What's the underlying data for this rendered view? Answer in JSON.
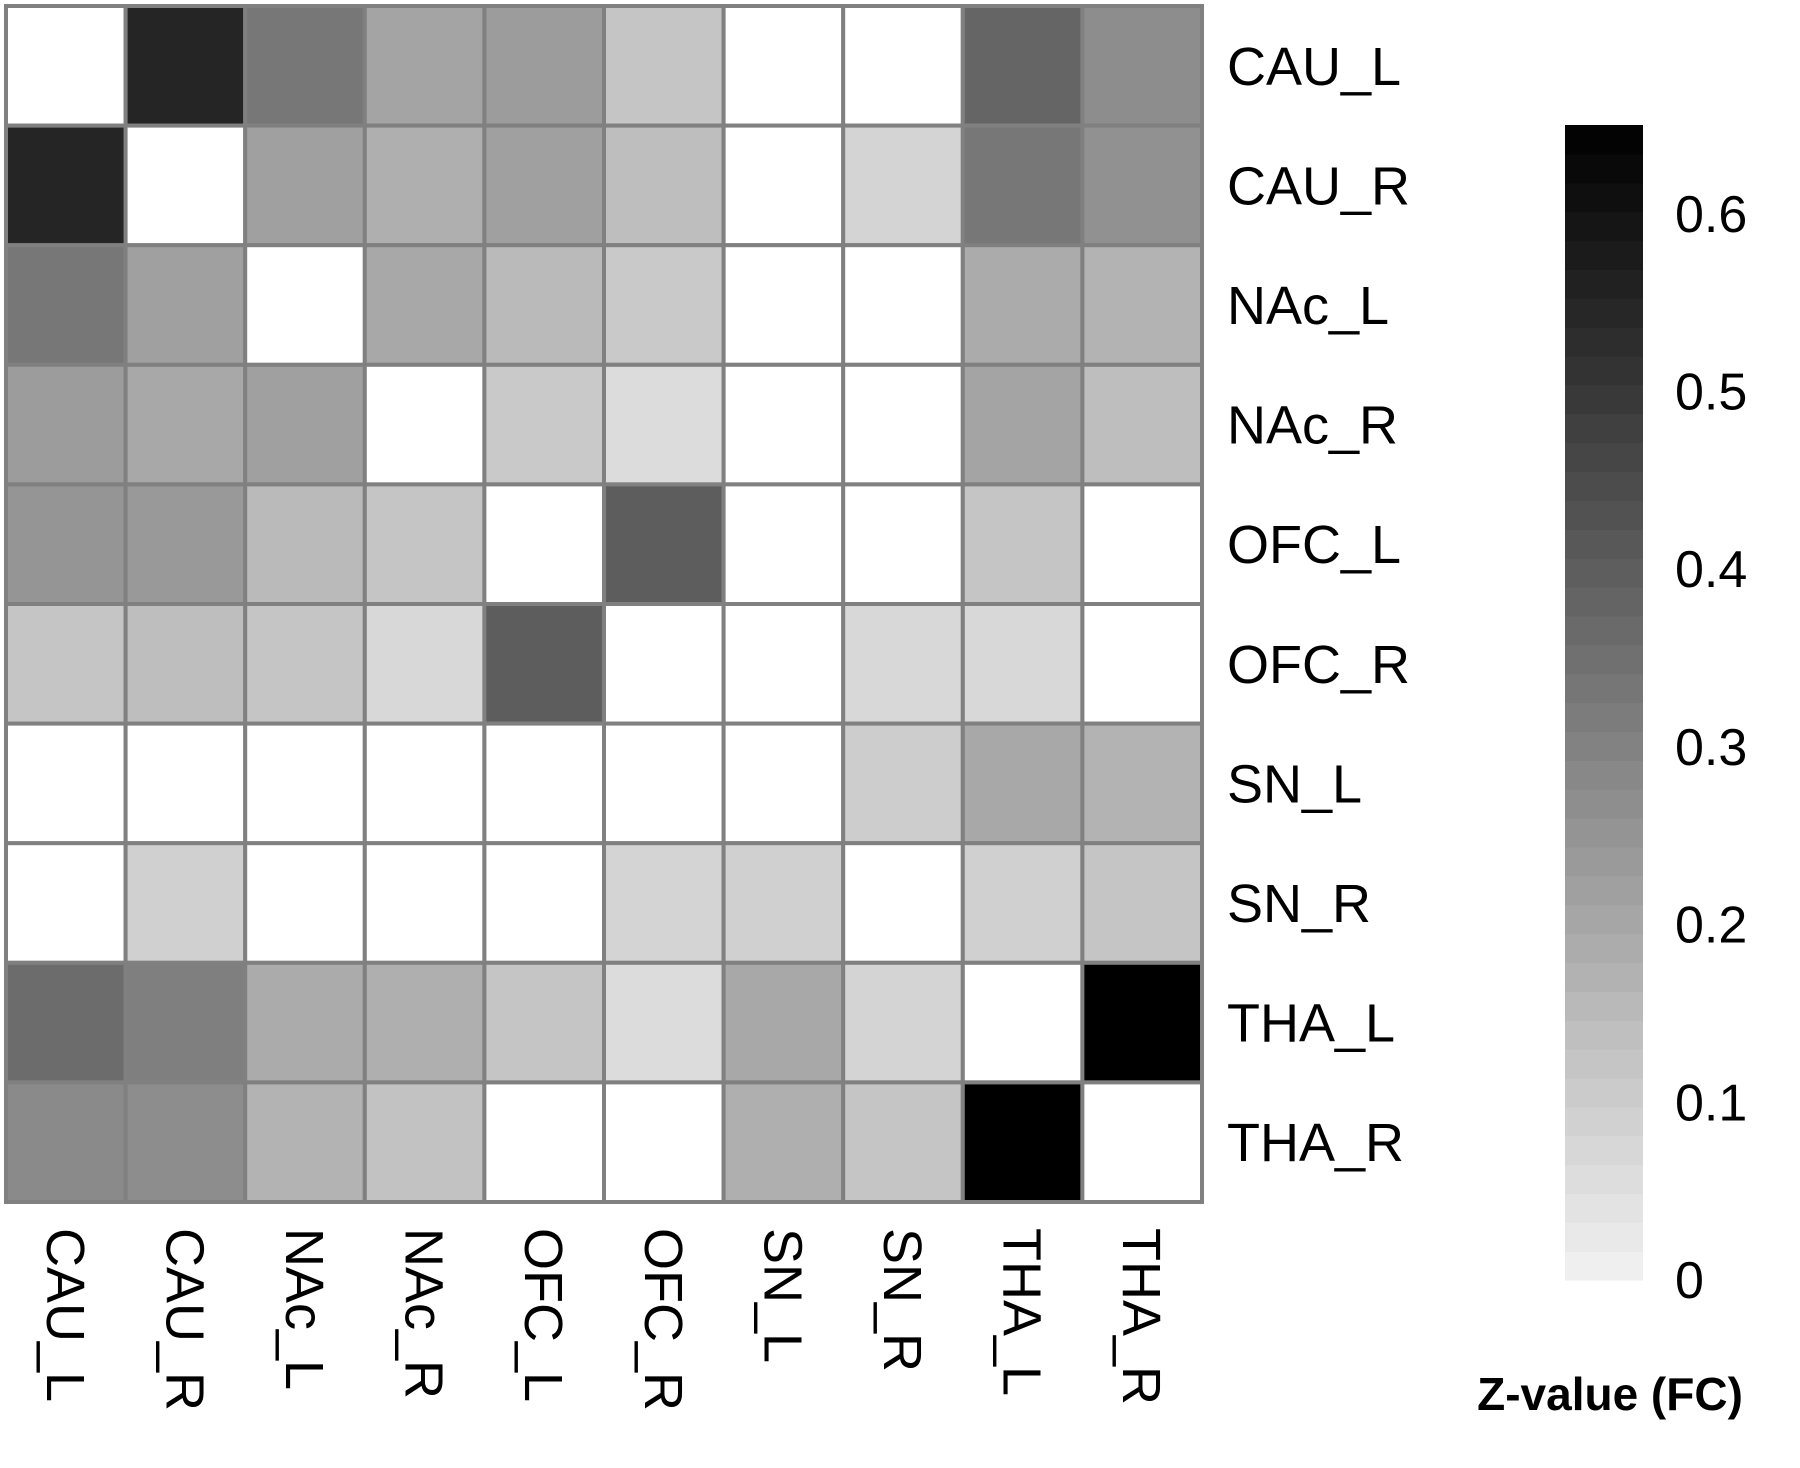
{
  "chart_data": {
    "type": "heatmap",
    "rows": [
      "CAU_L",
      "CAU_R",
      "NAc_L",
      "NAc_R",
      "OFC_L",
      "OFC_R",
      "SN_L",
      "SN_R",
      "THA_L",
      "THA_R"
    ],
    "columns": [
      "CAU_L",
      "CAU_R",
      "NAc_L",
      "NAc_R",
      "OFC_L",
      "OFC_R",
      "SN_L",
      "SN_R",
      "THA_L",
      "THA_R"
    ],
    "values": [
      [
        0,
        0.55,
        0.33,
        0.21,
        0.23,
        0.12,
        0,
        0,
        0.38,
        0.27
      ],
      [
        0.55,
        0,
        0.22,
        0.18,
        0.22,
        0.14,
        0,
        0.08,
        0.33,
        0.26
      ],
      [
        0.33,
        0.22,
        0,
        0.2,
        0.15,
        0.11,
        0,
        0,
        0.19,
        0.17
      ],
      [
        0.23,
        0.2,
        0.22,
        0,
        0.11,
        0.06,
        0,
        0,
        0.21,
        0.14
      ],
      [
        0.25,
        0.24,
        0.15,
        0.12,
        0,
        0.4,
        0,
        0,
        0.12,
        0
      ],
      [
        0.12,
        0.14,
        0.12,
        0.07,
        0.4,
        0,
        0,
        0.07,
        0.07,
        0
      ],
      [
        0,
        0,
        0,
        0,
        0,
        0,
        0,
        0.1,
        0.2,
        0.17
      ],
      [
        0,
        0.09,
        0,
        0,
        0,
        0.08,
        0.09,
        0,
        0.09,
        0.12
      ],
      [
        0.36,
        0.31,
        0.19,
        0.18,
        0.12,
        0.06,
        0.2,
        0.08,
        0,
        0.65
      ],
      [
        0.28,
        0.27,
        0.17,
        0.13,
        0,
        0,
        0.18,
        0.12,
        0.65,
        0
      ]
    ],
    "colorbar": {
      "title": "Z-value (FC)",
      "min": 0,
      "max": 0.65,
      "ticks": [
        0,
        0.1,
        0.2,
        0.3,
        0.4,
        0.5,
        0.6
      ],
      "low_color": "#f2f2f2",
      "high_color": "#000000"
    },
    "grid_color": "#808080"
  }
}
